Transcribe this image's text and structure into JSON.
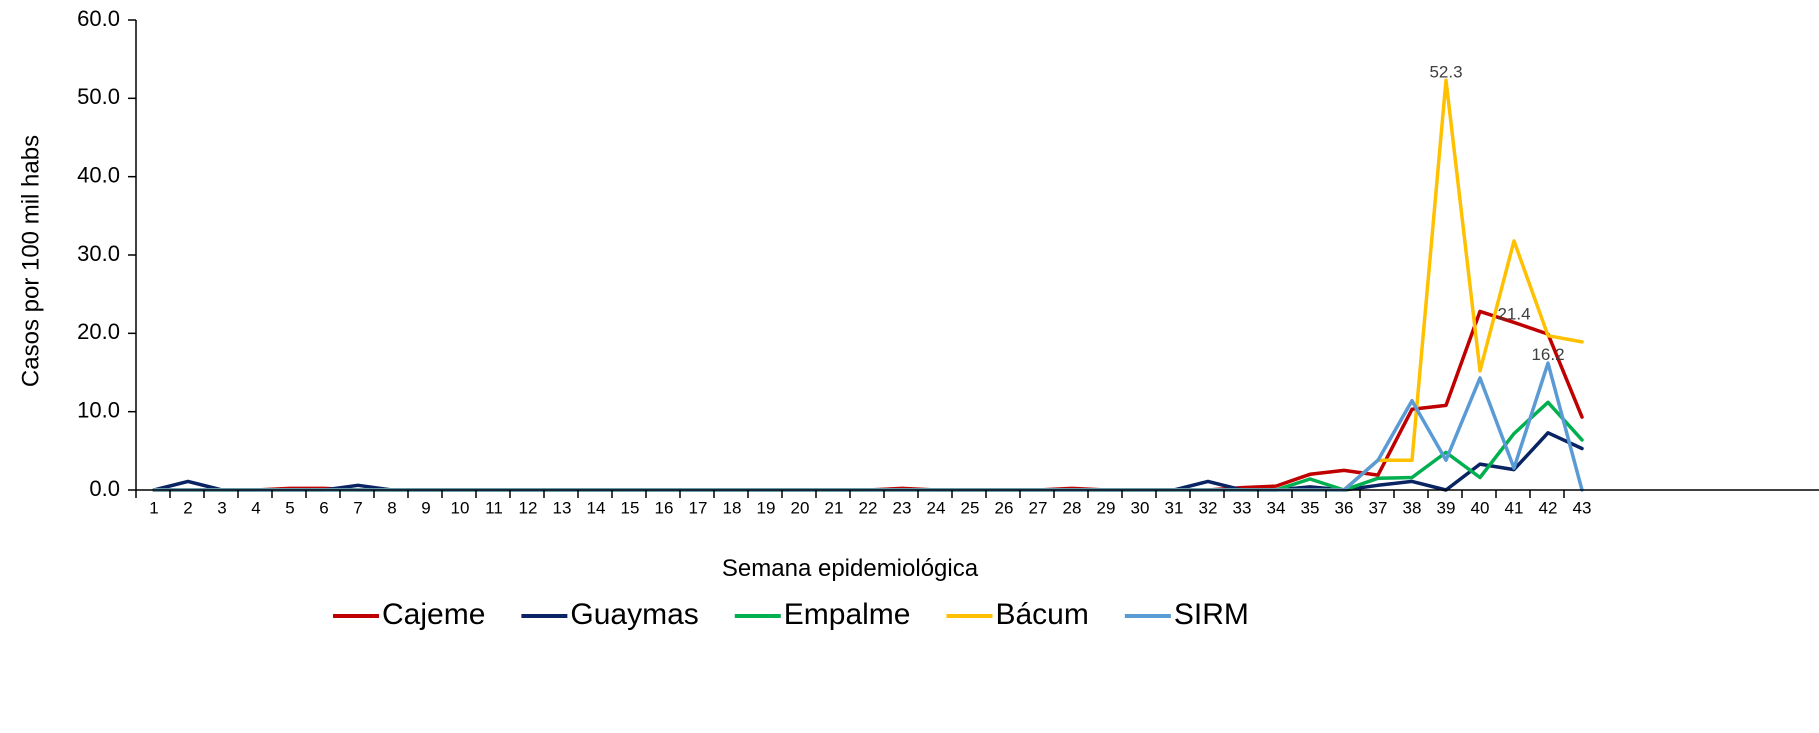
{
  "chart_data": {
    "type": "line",
    "title": "",
    "xlabel": "Semana epidemiológica",
    "ylabel": "Casos por 100 mil habs",
    "ylim": [
      0,
      60
    ],
    "yticks": [
      "0.0",
      "10.0",
      "20.0",
      "30.0",
      "40.0",
      "50.0",
      "60.0"
    ],
    "x": [
      1,
      2,
      3,
      4,
      5,
      6,
      7,
      8,
      9,
      10,
      11,
      12,
      13,
      14,
      15,
      16,
      17,
      18,
      19,
      20,
      21,
      22,
      23,
      24,
      25,
      26,
      27,
      28,
      29,
      30,
      31,
      32,
      33,
      34,
      35,
      36,
      37,
      38,
      39,
      40,
      41,
      42,
      43
    ],
    "x_tick_labels": [
      "1",
      "2",
      "3",
      "4",
      "5",
      "6",
      "7",
      "8",
      "9",
      "10",
      "11",
      "12",
      "13",
      "14",
      "15",
      "16",
      "17",
      "18",
      "19",
      "20",
      "21",
      "22",
      "23",
      "24",
      "25",
      "26",
      "27",
      "28",
      "29",
      "30",
      "31",
      "32",
      "33",
      "34",
      "35",
      "36",
      "37",
      "38",
      "39",
      "40",
      "41",
      "42",
      "43"
    ],
    "grid": false,
    "legend": "bottom",
    "series": [
      {
        "name": "Cajeme",
        "color": "#c00000",
        "values": [
          0,
          0,
          0,
          0,
          0.2,
          0.2,
          0,
          0,
          0,
          0,
          0,
          0,
          0,
          0,
          0,
          0,
          0,
          0,
          0,
          0,
          0,
          0,
          0.2,
          0,
          0,
          0,
          0,
          0.2,
          0,
          0,
          0,
          0,
          0.3,
          0.5,
          2.0,
          2.5,
          1.9,
          10.3,
          10.8,
          22.8,
          21.4,
          19.9,
          9.3
        ]
      },
      {
        "name": "Guaymas",
        "color": "#0a2463",
        "values": [
          0,
          1.1,
          0,
          0,
          0,
          0,
          0.6,
          0,
          0,
          0,
          0,
          0,
          0,
          0,
          0,
          0,
          0,
          0,
          0,
          0,
          0,
          0,
          0,
          0,
          0,
          0,
          0,
          0,
          0,
          0,
          0,
          1.1,
          0,
          0,
          0.4,
          0,
          0.6,
          1.1,
          0,
          3.3,
          2.6,
          7.3,
          5.3
        ]
      },
      {
        "name": "Empalme",
        "color": "#00b050",
        "values": [
          0,
          0,
          0,
          0,
          0,
          0,
          0,
          0,
          0,
          0,
          0,
          0,
          0,
          0,
          0,
          0,
          0,
          0,
          0,
          0,
          0,
          0,
          0,
          0,
          0,
          0,
          0,
          0,
          0,
          0,
          0,
          0,
          0,
          0,
          1.4,
          0,
          1.5,
          1.6,
          4.8,
          1.6,
          7.2,
          11.2,
          6.4
        ]
      },
      {
        "name": "Bácum",
        "color": "#ffc000",
        "values": [
          0,
          0,
          0,
          0,
          0,
          0,
          0,
          0,
          0,
          0,
          0,
          0,
          0,
          0,
          0,
          0,
          0,
          0,
          0,
          0,
          0,
          0,
          0,
          0,
          0,
          0,
          0,
          0,
          0,
          0,
          0,
          0,
          0,
          0,
          0,
          0,
          3.8,
          3.8,
          52.3,
          15.2,
          31.8,
          19.7,
          18.9
        ]
      },
      {
        "name": "SIRM",
        "color": "#5b9bd5",
        "values": [
          0,
          0,
          0,
          0,
          0,
          0,
          0,
          0,
          0,
          0,
          0,
          0,
          0,
          0,
          0,
          0,
          0,
          0,
          0,
          0,
          0,
          0,
          0,
          0,
          0,
          0,
          0,
          0,
          0,
          0,
          0,
          0,
          0,
          0,
          0,
          0,
          3.8,
          11.4,
          3.8,
          14.3,
          2.8,
          16.2,
          0
        ]
      }
    ],
    "data_labels": [
      {
        "series": "Bácum",
        "x": 39,
        "value": 52.3,
        "text": "52.3"
      },
      {
        "series": "Cajeme",
        "x": 41,
        "value": 21.4,
        "text": "21.4"
      },
      {
        "series": "SIRM",
        "x": 42,
        "value": 16.2,
        "text": "16.2"
      }
    ]
  }
}
